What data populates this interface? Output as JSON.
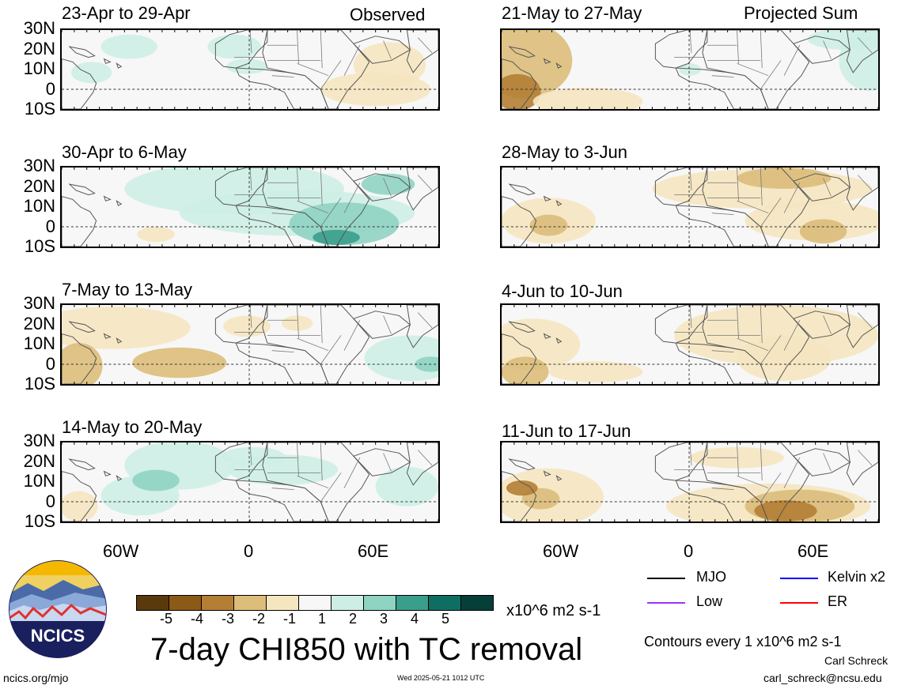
{
  "header": {
    "left_label": "Observed",
    "right_label": "Projected Sum"
  },
  "panels": [
    {
      "title": "23-Apr to 29-Apr"
    },
    {
      "title": "30-Apr to 6-May"
    },
    {
      "title": "7-May to 13-May"
    },
    {
      "title": "14-May to 20-May"
    },
    {
      "title": "21-May to 27-May"
    },
    {
      "title": "28-May to 3-Jun"
    },
    {
      "title": "4-Jun to 10-Jun"
    },
    {
      "title": "11-Jun to 17-Jun"
    }
  ],
  "lat_labels": [
    "30N",
    "20N",
    "10N",
    "0",
    "10S"
  ],
  "lon_labels": [
    "60W",
    "0",
    "60E"
  ],
  "colorbar": {
    "labels": [
      "-5",
      "-4",
      "-3",
      "-2",
      "-1",
      "1",
      "2",
      "3",
      "4",
      "5"
    ],
    "colors": [
      "#5a3a0c",
      "#8c5a17",
      "#b47e34",
      "#dcbd7a",
      "#f5e6c0",
      "#f7f7f7",
      "#cdeee4",
      "#8fd3c3",
      "#3a9e8c",
      "#0f6e62",
      "#063f38"
    ],
    "units": "x10^6 m2 s-1"
  },
  "title": "7-day CHI850 with TC removal",
  "legend": [
    {
      "label": "MJO",
      "color": "#000000"
    },
    {
      "label": "Kelvin x2",
      "color": "#0000ff"
    },
    {
      "label": "Low",
      "color": "#9933ff"
    },
    {
      "label": "ER",
      "color": "#ff0000"
    }
  ],
  "contours_note": "Contours every 1 x10^6 m2 s-1",
  "author": "Carl Schreck",
  "email": "carl_schreck@ncsu.edu",
  "url": "ncics.org/mjo",
  "timestamp": "Wed 2025-05-21 1012 UTC",
  "logo_text": "NCICS"
}
